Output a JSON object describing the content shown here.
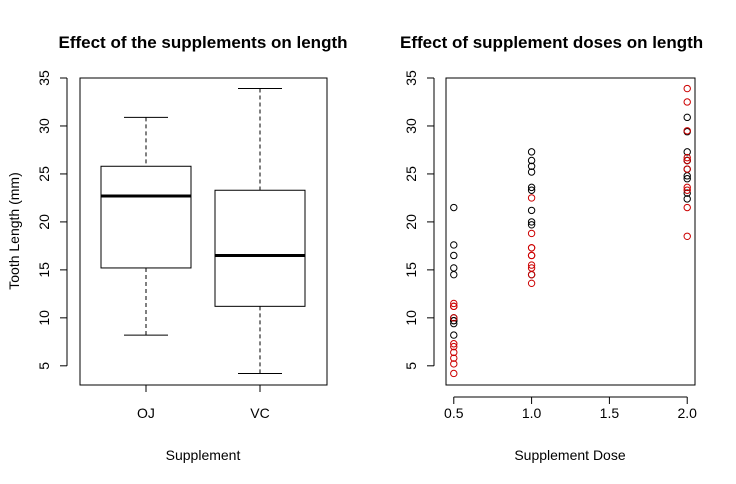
{
  "chart_data": [
    {
      "type": "box",
      "title": "Effect of the supplements on length",
      "xlabel": "Supplement",
      "ylabel": "Tooth Length (mm)",
      "categories": [
        "OJ",
        "VC"
      ],
      "ylim": [
        3,
        35
      ],
      "yticks": [
        5,
        10,
        15,
        20,
        25,
        30,
        35
      ],
      "boxes": [
        {
          "name": "OJ",
          "min": 8.2,
          "q1": 15.2,
          "median": 22.7,
          "q3": 25.8,
          "max": 30.9
        },
        {
          "name": "VC",
          "min": 4.2,
          "q1": 11.2,
          "median": 16.5,
          "q3": 23.3,
          "max": 33.9
        }
      ]
    },
    {
      "type": "scatter",
      "title": "Effect of supplement doses on length",
      "xlabel": "Supplement Dose",
      "ylabel": "",
      "xlim": [
        0.45,
        2.05
      ],
      "ylim": [
        3,
        35
      ],
      "xticks": [
        "0.5",
        "1.0",
        "1.5",
        "2.0"
      ],
      "yticks": [
        5,
        10,
        15,
        20,
        25,
        30,
        35
      ],
      "marker_colors": {
        "black": "#000000",
        "red": "#cc0000"
      },
      "series": [
        {
          "color": "black",
          "x": [
            0.5,
            0.5,
            0.5,
            0.5,
            0.5,
            0.5,
            0.5,
            0.5,
            0.5,
            0.5,
            1,
            1,
            1,
            1,
            1,
            1,
            1,
            1,
            1,
            1,
            2,
            2,
            2,
            2,
            2,
            2,
            2,
            2,
            2,
            2
          ],
          "y": [
            15.2,
            21.5,
            17.6,
            9.7,
            14.5,
            10.0,
            8.2,
            9.4,
            16.5,
            9.7,
            19.7,
            23.3,
            23.6,
            26.4,
            20.0,
            25.2,
            25.8,
            21.2,
            14.5,
            27.3,
            25.5,
            26.4,
            22.4,
            24.5,
            24.8,
            30.9,
            26.4,
            27.3,
            29.4,
            23.0
          ]
        },
        {
          "color": "red",
          "x": [
            0.5,
            0.5,
            0.5,
            0.5,
            0.5,
            0.5,
            0.5,
            0.5,
            0.5,
            0.5,
            1,
            1,
            1,
            1,
            1,
            1,
            1,
            1,
            1,
            1,
            2,
            2,
            2,
            2,
            2,
            2,
            2,
            2,
            2,
            2
          ],
          "y": [
            4.2,
            11.5,
            7.3,
            5.8,
            6.4,
            10.0,
            11.2,
            11.2,
            5.2,
            7.0,
            16.5,
            16.5,
            15.2,
            17.3,
            22.5,
            17.3,
            13.6,
            14.5,
            18.8,
            15.5,
            23.6,
            18.5,
            33.9,
            25.5,
            26.4,
            32.5,
            26.7,
            21.5,
            23.3,
            29.5
          ]
        }
      ]
    }
  ]
}
